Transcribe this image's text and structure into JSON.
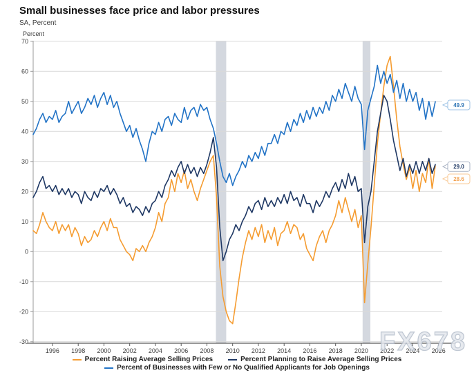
{
  "header": {
    "title": "Small businesses face price and labor pressures",
    "subtitle": "SA, Percent"
  },
  "watermark": "FX678",
  "chart_data": {
    "type": "line",
    "title": "Small businesses face price and labor pressures",
    "subtitle": "SA, Percent",
    "xlabel": "",
    "ylabel": "Percent",
    "ylim": [
      -30,
      70
    ],
    "x_range": [
      1994.5,
      2026.3
    ],
    "grid": "horizontal",
    "legend_position": "bottom",
    "y_ticks": [
      70,
      60,
      50,
      40,
      30,
      20,
      10,
      0,
      -10,
      -20,
      -30
    ],
    "x_ticks": [
      1996,
      1998,
      2000,
      2002,
      2004,
      2006,
      2008,
      2010,
      2012,
      2014,
      2016,
      2018,
      2020,
      2022,
      2024,
      2026
    ],
    "recession_bands": [
      [
        2008.7,
        2009.5
      ],
      [
        2020.1,
        2020.7
      ]
    ],
    "colors": {
      "grid": "#d9d9d9",
      "y_axis": "#9a9a9a",
      "x_axis": "#595959",
      "band": "#d4d8df",
      "tick_text": "#404040"
    },
    "series": [
      {
        "name": "Percent Raising Average Selling Prices",
        "color": "#F59C31",
        "end_value": 28.6,
        "callout": {
          "label": "28.6",
          "v": 24.2,
          "text_color": "#F2A354",
          "border_color": "#F9CA96"
        },
        "start": 1994.5,
        "step": 0.25,
        "values": [
          7,
          6,
          9,
          13,
          10,
          8,
          7,
          10,
          6,
          9,
          7,
          9,
          5,
          8,
          6,
          2,
          5,
          3,
          4,
          7,
          5,
          8,
          10,
          7,
          11,
          8,
          8,
          4,
          2,
          0,
          -1,
          -3,
          1,
          0,
          2,
          0,
          3,
          5,
          8,
          13,
          10,
          16,
          18,
          24,
          20,
          26,
          23,
          27,
          21,
          24,
          20,
          17,
          21,
          24,
          27,
          30,
          32,
          18,
          -5,
          -15,
          -20,
          -23,
          -24,
          -17,
          -9,
          -2,
          3,
          7,
          4,
          8,
          5,
          9,
          3,
          7,
          4,
          8,
          2,
          6,
          7,
          10,
          6,
          9,
          8,
          4,
          6,
          1,
          -1,
          -3,
          2,
          5,
          7,
          3,
          7,
          9,
          12,
          17,
          13,
          18,
          14,
          10,
          14,
          8,
          12,
          -17,
          -4,
          8,
          22,
          36,
          46,
          55,
          62,
          65,
          55,
          44,
          35,
          29,
          24,
          28,
          21,
          27,
          20,
          26,
          23,
          31,
          21,
          28.6
        ]
      },
      {
        "name": "Percent Planning to Raise Average Selling Prices",
        "color": "#1F3864",
        "end_value": 29.0,
        "callout": {
          "label": "29.0",
          "v": 28.3,
          "text_color": "#1F3864",
          "border_color": "#aab3c4"
        },
        "start": 1994.5,
        "step": 0.25,
        "values": [
          18,
          20,
          23,
          25,
          21,
          22,
          20,
          22,
          19,
          21,
          19,
          21,
          18,
          20,
          19,
          16,
          20,
          18,
          17,
          20,
          18,
          21,
          20,
          22,
          19,
          21,
          19,
          16,
          18,
          15,
          16,
          13,
          15,
          14,
          12,
          15,
          13,
          16,
          17,
          20,
          18,
          22,
          24,
          27,
          25,
          28,
          30,
          26,
          29,
          26,
          28,
          25,
          28,
          26,
          29,
          33,
          38,
          28,
          8,
          -3,
          0,
          4,
          6,
          9,
          7,
          10,
          12,
          15,
          13,
          16,
          17,
          14,
          18,
          15,
          17,
          15,
          18,
          16,
          19,
          16,
          20,
          17,
          18,
          15,
          19,
          16,
          16,
          13,
          17,
          15,
          17,
          20,
          18,
          21,
          23,
          20,
          24,
          21,
          26,
          22,
          25,
          20,
          21,
          3,
          15,
          20,
          30,
          40,
          46,
          52,
          50,
          44,
          37,
          32,
          27,
          31,
          25,
          29,
          26,
          30,
          26,
          30,
          27,
          31,
          26,
          29
        ]
      },
      {
        "name": "Percent of Businesses with Few or No Qualified Applicants for Job Openings",
        "color": "#2273C6",
        "end_value": 49.9,
        "callout": {
          "label": "49.9",
          "v": 48.8,
          "text_color": "#2E74B5",
          "border_color": "#9CC2E5"
        },
        "start": 1994.5,
        "step": 0.25,
        "values": [
          39,
          41,
          44,
          46,
          43,
          45,
          44,
          47,
          43,
          45,
          46,
          50,
          46,
          48,
          50,
          46,
          48,
          51,
          49,
          52,
          48,
          51,
          53,
          49,
          52,
          48,
          50,
          46,
          43,
          40,
          42,
          38,
          41,
          37,
          34,
          30,
          36,
          40,
          39,
          43,
          40,
          44,
          45,
          42,
          46,
          44,
          43,
          48,
          44,
          47,
          48,
          45,
          49,
          47,
          48,
          44,
          41,
          36,
          30,
          25,
          23,
          26,
          22,
          25,
          27,
          30,
          28,
          32,
          30,
          33,
          31,
          35,
          32,
          36,
          36,
          39,
          36,
          40,
          39,
          43,
          40,
          44,
          42,
          46,
          43,
          47,
          44,
          48,
          45,
          48,
          46,
          50,
          47,
          52,
          50,
          54,
          51,
          56,
          53,
          50,
          55,
          51,
          49,
          34,
          47,
          51,
          55,
          62,
          56,
          60,
          56,
          59,
          53,
          57,
          51,
          56,
          50,
          54,
          50,
          53,
          47,
          51,
          44,
          50,
          45,
          49.9
        ]
      }
    ],
    "legend_rows": [
      [
        0,
        1
      ],
      [
        2
      ]
    ]
  }
}
